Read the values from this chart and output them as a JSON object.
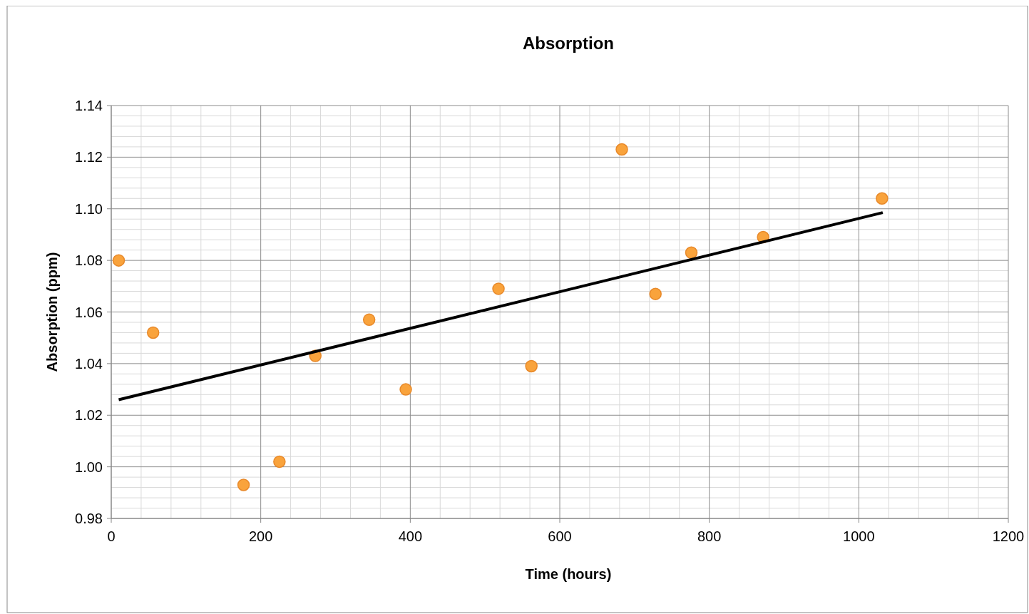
{
  "chart_data": {
    "type": "scatter",
    "title": "Absorption",
    "xlabel": "Time (hours)",
    "ylabel": "Absorption (ppm)",
    "xlim": [
      0,
      1200
    ],
    "xticks": [
      0,
      200,
      400,
      600,
      800,
      1000,
      1200
    ],
    "ylim": [
      0.98,
      1.14
    ],
    "yticks": [
      {
        "value": 0.98,
        "label": "0.98"
      },
      {
        "value": 1.0,
        "label": "1.00"
      },
      {
        "value": 1.02,
        "label": "1.02"
      },
      {
        "value": 1.04,
        "label": "1.04"
      },
      {
        "value": 1.06,
        "label": "1.06"
      },
      {
        "value": 1.08,
        "label": "1.08"
      },
      {
        "value": 1.1,
        "label": "1.10"
      },
      {
        "value": 1.12,
        "label": "1.12"
      },
      {
        "value": 1.14,
        "label": "1.14"
      }
    ],
    "grid": true,
    "marker": "circle",
    "series": [
      {
        "color": "#f9a33c",
        "x": [
          10,
          56,
          177,
          225,
          273,
          345,
          394,
          518,
          562,
          683,
          728,
          776,
          872,
          1031
        ],
        "values": [
          1.08,
          1.052,
          0.993,
          1.002,
          1.043,
          1.057,
          1.03,
          1.069,
          1.039,
          1.123,
          1.067,
          1.083,
          1.089,
          1.104
        ]
      },
      {
        "type": "line",
        "color": "#000000",
        "x": [
          10,
          1032
        ],
        "values": [
          1.026,
          1.0985
        ],
        "marker": "none",
        "line_style": "solid"
      }
    ]
  }
}
